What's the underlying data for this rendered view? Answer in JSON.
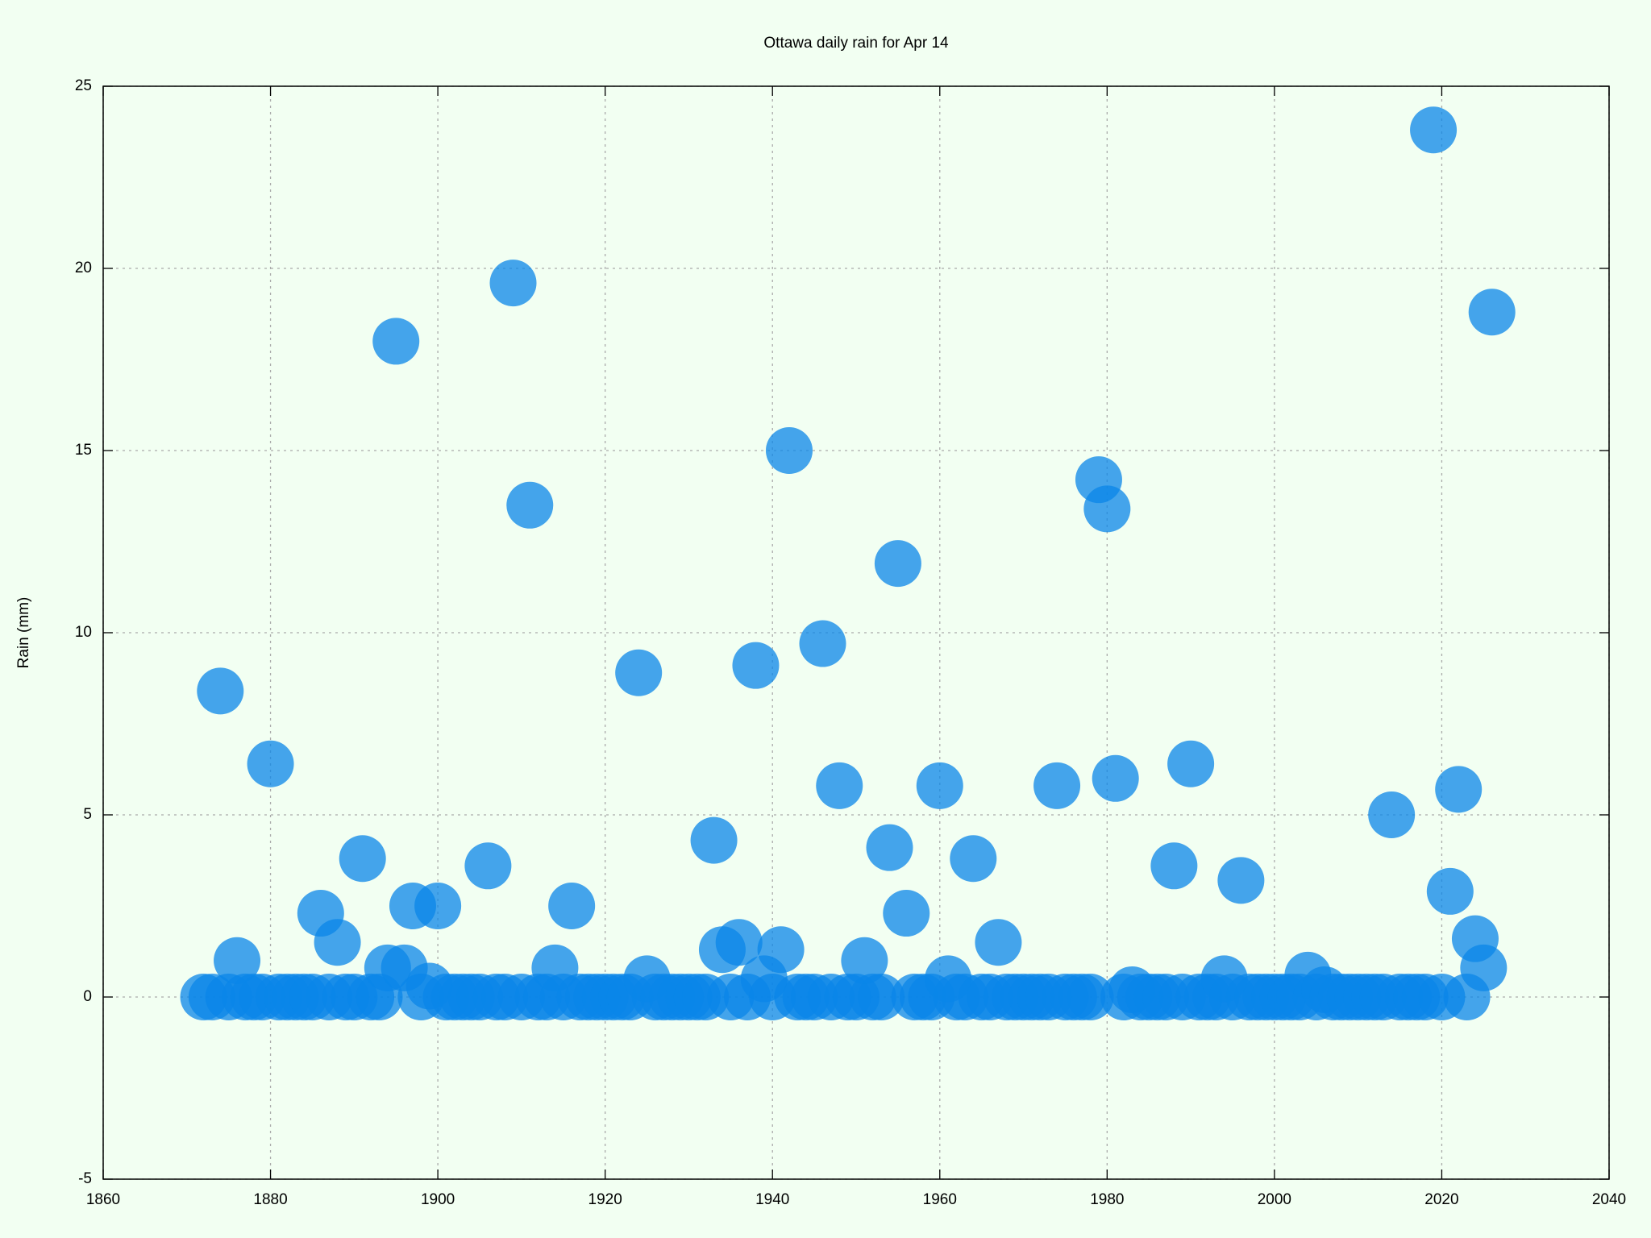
{
  "chart_data": {
    "type": "scatter",
    "title": "Ottawa daily rain for Apr 14",
    "y_label": "Rain (mm)",
    "color": "#0a86e8",
    "grid": true,
    "xlim": [
      1860,
      2040
    ],
    "xticks": [
      1860,
      1880,
      1900,
      1920,
      1940,
      1960,
      1980,
      2000,
      2020,
      2040
    ],
    "ylim": [
      -5,
      25
    ],
    "yticks": [
      -5,
      0,
      5,
      10,
      15,
      20,
      25
    ],
    "x": [
      1872,
      1873,
      1874,
      1875,
      1876,
      1877,
      1878,
      1879,
      1880,
      1881,
      1882,
      1883,
      1884,
      1885,
      1886,
      1887,
      1888,
      1889,
      1890,
      1891,
      1892,
      1893,
      1894,
      1895,
      1896,
      1897,
      1898,
      1899,
      1900,
      1901,
      1902,
      1903,
      1904,
      1905,
      1906,
      1907,
      1908,
      1909,
      1910,
      1911,
      1912,
      1913,
      1914,
      1915,
      1916,
      1917,
      1918,
      1919,
      1920,
      1921,
      1922,
      1923,
      1924,
      1925,
      1926,
      1927,
      1928,
      1929,
      1930,
      1931,
      1932,
      1933,
      1934,
      1935,
      1936,
      1937,
      1938,
      1939,
      1940,
      1941,
      1942,
      1943,
      1944,
      1945,
      1946,
      1947,
      1948,
      1949,
      1950,
      1951,
      1952,
      1953,
      1954,
      1955,
      1956,
      1957,
      1958,
      1959,
      1960,
      1961,
      1962,
      1963,
      1964,
      1965,
      1966,
      1967,
      1968,
      1969,
      1970,
      1971,
      1972,
      1973,
      1974,
      1975,
      1976,
      1977,
      1978,
      1979,
      1980,
      1981,
      1982,
      1983,
      1984,
      1985,
      1986,
      1987,
      1988,
      1989,
      1990,
      1991,
      1992,
      1993,
      1994,
      1995,
      1996,
      1997,
      1998,
      1999,
      2000,
      2001,
      2002,
      2003,
      2004,
      2005,
      2006,
      2007,
      2008,
      2009,
      2010,
      2011,
      2012,
      2013,
      2014,
      2015,
      2016,
      2017,
      2018,
      2019,
      2020,
      2021,
      2022,
      2023,
      2024,
      2025,
      2026
    ],
    "values": [
      0,
      0,
      8.4,
      0,
      1.0,
      0,
      0,
      0,
      6.4,
      0,
      0,
      0,
      0,
      0,
      2.3,
      0,
      1.5,
      0,
      0,
      3.8,
      0,
      0,
      0.8,
      18.0,
      0.8,
      2.5,
      0,
      0.3,
      2.5,
      0,
      0,
      0,
      0,
      0,
      3.6,
      0,
      0,
      19.6,
      0,
      13.5,
      0,
      0,
      0.8,
      0,
      2.5,
      0,
      0,
      0,
      0,
      0,
      0,
      0,
      8.9,
      0.5,
      0,
      0,
      0,
      0,
      0,
      0,
      0,
      4.3,
      1.3,
      0,
      1.5,
      0,
      9.1,
      0.5,
      0,
      1.3,
      15.0,
      0,
      0,
      0,
      9.7,
      0,
      5.8,
      0,
      0,
      1.0,
      0,
      0,
      4.1,
      11.9,
      2.3,
      0,
      0,
      0,
      5.8,
      0.5,
      0,
      0,
      3.8,
      0,
      0,
      1.5,
      0,
      0,
      0,
      0,
      0,
      0,
      5.8,
      0,
      0,
      0,
      0,
      14.2,
      13.4,
      6.0,
      0,
      0.2,
      0,
      0,
      0,
      0,
      3.6,
      0,
      6.4,
      0,
      0,
      0,
      0.5,
      0,
      3.2,
      0,
      0,
      0,
      0,
      0,
      0,
      0,
      0.6,
      0,
      0.2,
      0,
      0,
      0,
      0,
      0,
      0,
      0,
      5.0,
      0,
      0,
      0,
      0,
      23.8,
      0,
      2.9,
      5.7,
      0,
      1.6,
      0.8,
      18.8
    ]
  }
}
